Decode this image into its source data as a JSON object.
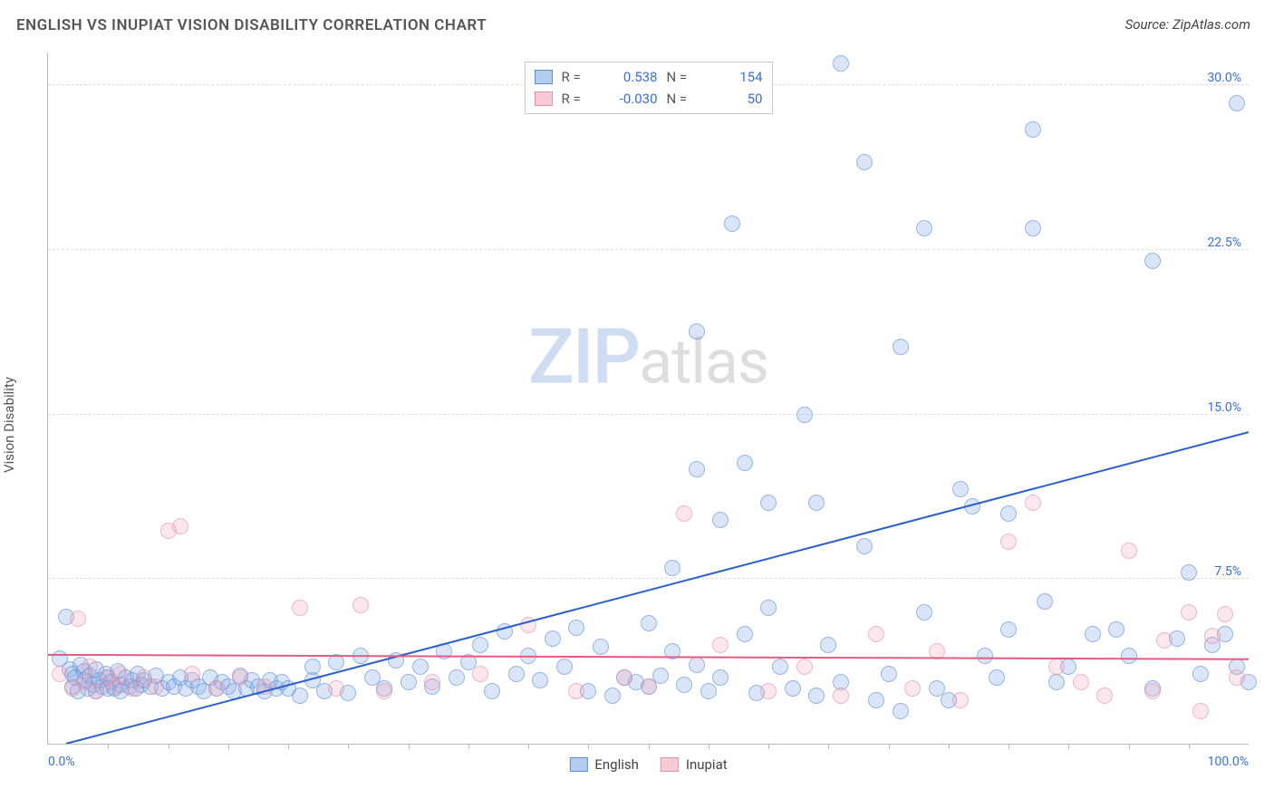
{
  "title": "ENGLISH VS INUPIAT VISION DISABILITY CORRELATION CHART",
  "source": "Source: ZipAtlas.com",
  "y_axis_label": "Vision Disability",
  "watermark_zip": "ZIP",
  "watermark_atlas": "atlas",
  "chart": {
    "type": "scatter",
    "xlim": [
      0,
      100
    ],
    "ylim": [
      0,
      31.5
    ],
    "x_ticks": [
      {
        "pos": 0,
        "label": "0.0%",
        "align": "left"
      },
      {
        "pos": 100,
        "label": "100.0%",
        "align": "right"
      }
    ],
    "y_ticks": [
      {
        "pos": 7.5,
        "label": "7.5%"
      },
      {
        "pos": 15.0,
        "label": "15.0%"
      },
      {
        "pos": 22.5,
        "label": "22.5%"
      },
      {
        "pos": 30.0,
        "label": "30.0%"
      }
    ],
    "x_minor_ticks": [
      5,
      10,
      15,
      20,
      25,
      30,
      35,
      40,
      45,
      50,
      55,
      60,
      65,
      70,
      75,
      80,
      85,
      90,
      95
    ],
    "grid_color": "#dddddd",
    "background_color": "#ffffff",
    "series": [
      {
        "name": "English",
        "marker_fill": "rgba(130,170,230,0.45)",
        "marker_stroke": "#5f8ed6",
        "marker_size": 18,
        "r_value": "0.538",
        "n_value": "154",
        "trend": {
          "x1": 1.5,
          "y1": 0,
          "x2": 100,
          "y2": 14.2,
          "color": "#2a5fd0",
          "width": 2
        },
        "points": [
          [
            1,
            3.9
          ],
          [
            1.5,
            5.8
          ],
          [
            1.8,
            3.4
          ],
          [
            2,
            2.6
          ],
          [
            2,
            3.2
          ],
          [
            2.3,
            3.0
          ],
          [
            2.5,
            2.4
          ],
          [
            2.7,
            3.6
          ],
          [
            3,
            2.9
          ],
          [
            3,
            3.3
          ],
          [
            3.3,
            2.5
          ],
          [
            3.5,
            3.1
          ],
          [
            3.8,
            2.7
          ],
          [
            4,
            2.4
          ],
          [
            4,
            3.4
          ],
          [
            4.3,
            2.9
          ],
          [
            4.5,
            2.6
          ],
          [
            4.8,
            3.2
          ],
          [
            5,
            2.5
          ],
          [
            5,
            3.0
          ],
          [
            5.3,
            2.8
          ],
          [
            5.5,
            2.5
          ],
          [
            5.8,
            3.3
          ],
          [
            6,
            2.7
          ],
          [
            6,
            2.4
          ],
          [
            6.5,
            3.0
          ],
          [
            6.8,
            2.6
          ],
          [
            7,
            2.9
          ],
          [
            7.3,
            2.5
          ],
          [
            7.5,
            3.2
          ],
          [
            7.8,
            2.7
          ],
          [
            8,
            2.9
          ],
          [
            8.5,
            2.6
          ],
          [
            9,
            3.1
          ],
          [
            9.5,
            2.5
          ],
          [
            10,
            2.8
          ],
          [
            10.5,
            2.6
          ],
          [
            11,
            3.0
          ],
          [
            11.5,
            2.5
          ],
          [
            12,
            2.9
          ],
          [
            12.5,
            2.6
          ],
          [
            13,
            2.4
          ],
          [
            13.5,
            3.0
          ],
          [
            14,
            2.5
          ],
          [
            14.5,
            2.8
          ],
          [
            15,
            2.6
          ],
          [
            15.5,
            2.4
          ],
          [
            16,
            3.1
          ],
          [
            16.5,
            2.5
          ],
          [
            17,
            2.9
          ],
          [
            17.5,
            2.6
          ],
          [
            18,
            2.4
          ],
          [
            18.5,
            2.9
          ],
          [
            19,
            2.5
          ],
          [
            19.5,
            2.8
          ],
          [
            20,
            2.5
          ],
          [
            21,
            2.2
          ],
          [
            22,
            2.9
          ],
          [
            22,
            3.5
          ],
          [
            23,
            2.4
          ],
          [
            24,
            3.7
          ],
          [
            25,
            2.3
          ],
          [
            26,
            4.0
          ],
          [
            27,
            3.0
          ],
          [
            28,
            2.5
          ],
          [
            29,
            3.8
          ],
          [
            30,
            2.8
          ],
          [
            31,
            3.5
          ],
          [
            32,
            2.6
          ],
          [
            33,
            4.2
          ],
          [
            34,
            3.0
          ],
          [
            35,
            3.7
          ],
          [
            36,
            4.5
          ],
          [
            37,
            2.4
          ],
          [
            38,
            5.1
          ],
          [
            39,
            3.2
          ],
          [
            40,
            4.0
          ],
          [
            41,
            2.9
          ],
          [
            42,
            4.8
          ],
          [
            43,
            3.5
          ],
          [
            44,
            5.3
          ],
          [
            45,
            2.4
          ],
          [
            46,
            4.4
          ],
          [
            47,
            2.2
          ],
          [
            48,
            3.0
          ],
          [
            49,
            2.8
          ],
          [
            50,
            5.5
          ],
          [
            50,
            2.6
          ],
          [
            51,
            3.1
          ],
          [
            52,
            8.0
          ],
          [
            52,
            4.2
          ],
          [
            53,
            2.7
          ],
          [
            54,
            12.5
          ],
          [
            54,
            18.8
          ],
          [
            54,
            3.6
          ],
          [
            55,
            2.4
          ],
          [
            56,
            10.2
          ],
          [
            56,
            3.0
          ],
          [
            57,
            23.7
          ],
          [
            58,
            5.0
          ],
          [
            58,
            12.8
          ],
          [
            59,
            2.3
          ],
          [
            60,
            6.2
          ],
          [
            60,
            11.0
          ],
          [
            61,
            3.5
          ],
          [
            62,
            2.5
          ],
          [
            63,
            15.0
          ],
          [
            64,
            2.2
          ],
          [
            64,
            11.0
          ],
          [
            65,
            4.5
          ],
          [
            66,
            2.8
          ],
          [
            66,
            31.0
          ],
          [
            68,
            26.5
          ],
          [
            68,
            9.0
          ],
          [
            69,
            2.0
          ],
          [
            70,
            3.2
          ],
          [
            71,
            1.5
          ],
          [
            71,
            18.1
          ],
          [
            73,
            23.5
          ],
          [
            73,
            6.0
          ],
          [
            74,
            2.5
          ],
          [
            75,
            2.0
          ],
          [
            76,
            11.6
          ],
          [
            77,
            10.8
          ],
          [
            78,
            4.0
          ],
          [
            79,
            3.0
          ],
          [
            80,
            5.2
          ],
          [
            80,
            10.5
          ],
          [
            82,
            23.5
          ],
          [
            82,
            28.0
          ],
          [
            83,
            6.5
          ],
          [
            84,
            2.8
          ],
          [
            85,
            3.5
          ],
          [
            87,
            5.0
          ],
          [
            89,
            5.2
          ],
          [
            90,
            4.0
          ],
          [
            92,
            2.5
          ],
          [
            92,
            22.0
          ],
          [
            94,
            4.8
          ],
          [
            95,
            7.8
          ],
          [
            96,
            3.2
          ],
          [
            97,
            4.5
          ],
          [
            98,
            5.0
          ],
          [
            99,
            3.5
          ],
          [
            99,
            29.2
          ],
          [
            100,
            2.8
          ]
        ]
      },
      {
        "name": "Inupiat",
        "marker_fill": "rgba(240,160,180,0.40)",
        "marker_stroke": "#e790ab",
        "marker_size": 18,
        "r_value": "-0.030",
        "n_value": "50",
        "trend": {
          "x1": 0,
          "y1": 4.05,
          "x2": 100,
          "y2": 3.85,
          "color": "#e45b82",
          "width": 2
        },
        "points": [
          [
            1,
            3.2
          ],
          [
            2,
            2.5
          ],
          [
            2.5,
            5.7
          ],
          [
            3,
            2.8
          ],
          [
            3.5,
            3.5
          ],
          [
            4,
            2.4
          ],
          [
            5,
            3.0
          ],
          [
            5.5,
            2.6
          ],
          [
            6,
            3.2
          ],
          [
            7,
            2.5
          ],
          [
            8,
            3.0
          ],
          [
            9,
            2.6
          ],
          [
            10,
            9.7
          ],
          [
            11,
            9.9
          ],
          [
            12,
            3.2
          ],
          [
            14,
            2.5
          ],
          [
            16,
            3.0
          ],
          [
            18,
            2.6
          ],
          [
            21,
            6.2
          ],
          [
            24,
            2.5
          ],
          [
            26,
            6.3
          ],
          [
            28,
            2.4
          ],
          [
            32,
            2.8
          ],
          [
            36,
            3.2
          ],
          [
            40,
            5.4
          ],
          [
            44,
            2.4
          ],
          [
            48,
            3.0
          ],
          [
            50,
            2.6
          ],
          [
            53,
            10.5
          ],
          [
            56,
            4.5
          ],
          [
            60,
            2.4
          ],
          [
            63,
            3.5
          ],
          [
            66,
            2.2
          ],
          [
            69,
            5.0
          ],
          [
            72,
            2.5
          ],
          [
            74,
            4.2
          ],
          [
            76,
            2.0
          ],
          [
            80,
            9.2
          ],
          [
            82,
            11.0
          ],
          [
            84,
            3.5
          ],
          [
            86,
            2.8
          ],
          [
            88,
            2.2
          ],
          [
            90,
            8.8
          ],
          [
            92,
            2.4
          ],
          [
            93,
            4.7
          ],
          [
            95,
            6.0
          ],
          [
            96,
            1.5
          ],
          [
            97,
            4.9
          ],
          [
            98,
            5.9
          ],
          [
            99,
            3.0
          ]
        ]
      }
    ]
  },
  "legend_top": {
    "r_label": "R =",
    "n_label": "N ="
  },
  "legend_bottom_label_1": "English",
  "legend_bottom_label_2": "Inupiat"
}
